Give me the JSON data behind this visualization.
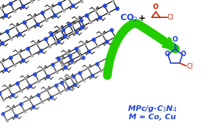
{
  "bg_color": "#ffffff",
  "arrow_color": "#22cc00",
  "co2_color": "#2244cc",
  "reactant_color": "#cc2200",
  "product_ring_color": "#2244cc",
  "label_color": "#2244cc",
  "co2_text": "CO$_2$",
  "plus_text": "+",
  "catalyst_line1": "MPc/g-C$_3$N$_4$",
  "catalyst_line2": "M = Co, Cu",
  "crystal_node_color": "#2244dd",
  "crystal_bond_color": "#111111",
  "crystal_atom_color": "#aaaaaa",
  "fig_width": 3.12,
  "fig_height": 1.89,
  "dpi": 100
}
